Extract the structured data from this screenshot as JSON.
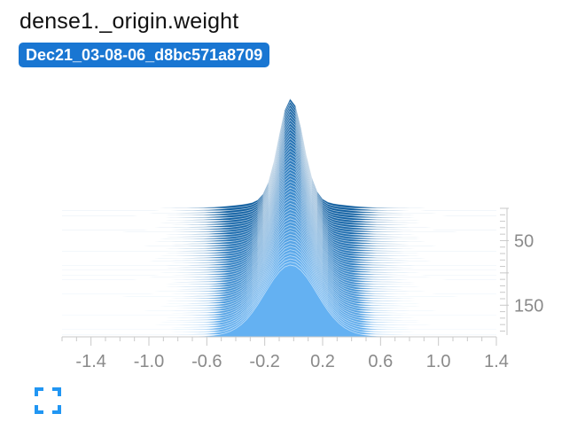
{
  "title": "dense1._origin.weight",
  "run_label": "Dec21_03-08-06_d8bc571a8709",
  "colors": {
    "badge": "#1976d2",
    "back_slice": "#0d5c9e",
    "front_slice": "#64b1f2",
    "axis": "#c9c9c9",
    "tick_text": "#8a8a8a",
    "expand_icon": "#2196f3"
  },
  "expand_icon": "expand-corners-icon",
  "chart_data": {
    "type": "histogram-offset",
    "title": "dense1._origin.weight",
    "x_ticks": [
      -1.4,
      -1.0,
      -0.6,
      -0.2,
      0.2,
      0.6,
      1.0,
      1.4
    ],
    "xlim": [
      -1.6,
      1.4
    ],
    "step_ticks": [
      50,
      150
    ],
    "steps": [
      0,
      199
    ],
    "x_tick_labels": [
      "-1.4",
      "-1.0",
      "-0.6",
      "-0.2",
      "0.2",
      "0.6",
      "1.0",
      "1.4"
    ],
    "step_tick_labels": [
      "50",
      "150"
    ]
  }
}
